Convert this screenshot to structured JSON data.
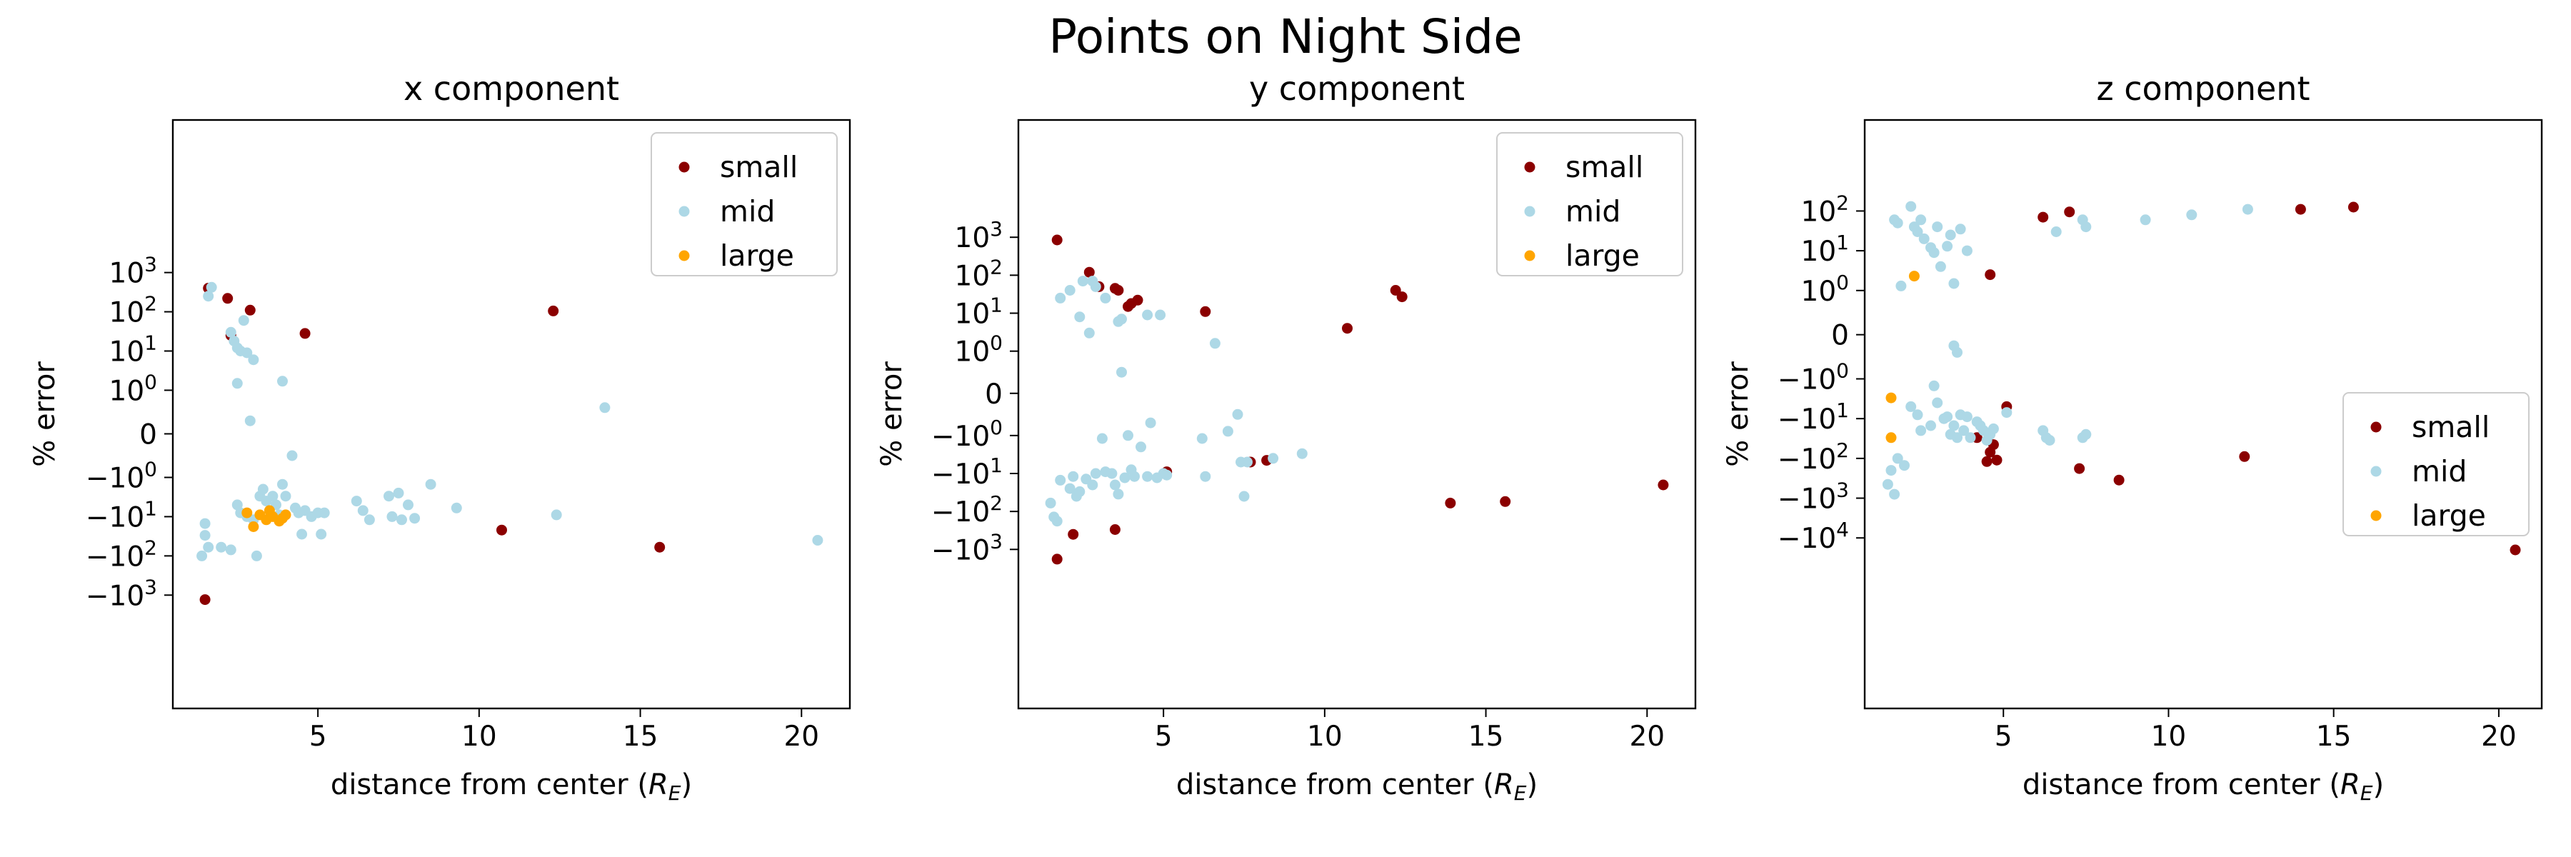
{
  "figure": {
    "suptitle": "Points on Night Side"
  },
  "colors": {
    "small": "#8b0000",
    "mid": "#add8e6",
    "large": "#ffa500"
  },
  "chart_data": [
    {
      "type": "scatter",
      "title": "x component",
      "xlabel": "distance from center",
      "xlabel_math": "R",
      "xlabel_math_sub": "E",
      "ylabel": "% error",
      "xscale": "linear",
      "yscale": "symlog",
      "xlim": [
        0.5,
        21.5
      ],
      "xticks": [
        5,
        10,
        15,
        20
      ],
      "yticks": [
        "10^3",
        "10^2",
        "10^1",
        "10^0",
        "0",
        "-10^0",
        "-10^1",
        "-10^2",
        "-10^3"
      ],
      "ylim_pos": 8,
      "ylim_neg": -7,
      "legend": {
        "placement": "top-right",
        "entries": [
          "small",
          "mid",
          "large"
        ]
      },
      "series": [
        {
          "name": "small",
          "color": "#8b0000",
          "points": [
            [
              1.6,
              400
            ],
            [
              2.2,
              220
            ],
            [
              2.3,
              25
            ],
            [
              2.9,
              110
            ],
            [
              4.6,
              28
            ],
            [
              12.3,
              105
            ],
            [
              10.7,
              -22
            ],
            [
              15.6,
              -60
            ],
            [
              1.5,
              -1300
            ]
          ]
        },
        {
          "name": "mid",
          "color": "#add8e6",
          "points": [
            [
              1.7,
              420
            ],
            [
              1.6,
              250
            ],
            [
              2.3,
              30
            ],
            [
              2.4,
              18
            ],
            [
              2.5,
              12
            ],
            [
              2.6,
              10
            ],
            [
              2.8,
              9
            ],
            [
              2.7,
              60
            ],
            [
              3.0,
              6
            ],
            [
              2.5,
              1.5
            ],
            [
              3.9,
              1.7
            ],
            [
              2.9,
              0.3
            ],
            [
              13.9,
              0.6
            ],
            [
              1.5,
              -15
            ],
            [
              1.6,
              -60
            ],
            [
              1.4,
              -100
            ],
            [
              1.5,
              -30
            ],
            [
              2.0,
              -60
            ],
            [
              2.3,
              -70
            ],
            [
              2.5,
              -5
            ],
            [
              2.6,
              -8
            ],
            [
              2.8,
              -10
            ],
            [
              3.0,
              -12
            ],
            [
              3.1,
              -100
            ],
            [
              3.2,
              -3
            ],
            [
              3.3,
              -2
            ],
            [
              3.4,
              -4
            ],
            [
              3.6,
              -3
            ],
            [
              3.7,
              -5
            ],
            [
              3.8,
              -9
            ],
            [
              3.9,
              -1.5
            ],
            [
              4.0,
              -3
            ],
            [
              4.2,
              -0.5
            ],
            [
              4.3,
              -6
            ],
            [
              4.4,
              -8
            ],
            [
              4.5,
              -28
            ],
            [
              4.6,
              -7
            ],
            [
              4.8,
              -10
            ],
            [
              5.0,
              -8
            ],
            [
              5.1,
              -28
            ],
            [
              5.2,
              -8
            ],
            [
              6.2,
              -4
            ],
            [
              6.4,
              -7
            ],
            [
              6.6,
              -12
            ],
            [
              7.2,
              -3
            ],
            [
              7.3,
              -10
            ],
            [
              7.5,
              -2.5
            ],
            [
              7.6,
              -12
            ],
            [
              7.8,
              -5
            ],
            [
              8.0,
              -11
            ],
            [
              8.5,
              -1.5
            ],
            [
              9.3,
              -6
            ],
            [
              12.4,
              -9
            ],
            [
              20.5,
              -40
            ]
          ]
        },
        {
          "name": "large",
          "color": "#ffa500",
          "points": [
            [
              2.8,
              -8
            ],
            [
              3.0,
              -18
            ],
            [
              3.2,
              -9
            ],
            [
              3.4,
              -12
            ],
            [
              3.5,
              -7
            ],
            [
              3.6,
              -10
            ],
            [
              3.8,
              -13
            ],
            [
              3.9,
              -11
            ],
            [
              4.0,
              -9
            ]
          ]
        }
      ]
    },
    {
      "type": "scatter",
      "title": "y component",
      "xlabel": "distance from center",
      "xlabel_math": "R",
      "xlabel_math_sub": "E",
      "ylabel": "% error",
      "xscale": "linear",
      "yscale": "symlog",
      "xlim": [
        0.5,
        21.5
      ],
      "xticks": [
        5,
        10,
        15,
        20
      ],
      "yticks": [
        "10^3",
        "10^2",
        "10^1",
        "10^0",
        "0",
        "-10^0",
        "-10^1",
        "-10^2",
        "-10^3"
      ],
      "ylim_pos": 7.2,
      "ylim_neg": -8.3,
      "legend": {
        "placement": "top-right",
        "entries": [
          "small",
          "mid",
          "large"
        ]
      },
      "series": [
        {
          "name": "small",
          "color": "#8b0000",
          "points": [
            [
              1.7,
              850
            ],
            [
              2.7,
              120
            ],
            [
              3.0,
              50
            ],
            [
              3.5,
              45
            ],
            [
              3.6,
              40
            ],
            [
              3.9,
              15
            ],
            [
              4.0,
              18
            ],
            [
              4.2,
              22
            ],
            [
              6.3,
              11
            ],
            [
              10.7,
              4
            ],
            [
              12.2,
              40
            ],
            [
              12.4,
              27
            ],
            [
              5.1,
              -9
            ],
            [
              7.7,
              -5
            ],
            [
              8.2,
              -4.5
            ],
            [
              13.9,
              -60
            ],
            [
              15.6,
              -55
            ],
            [
              20.5,
              -20
            ],
            [
              2.2,
              -400
            ],
            [
              3.5,
              -300
            ],
            [
              1.7,
              -1800
            ]
          ]
        },
        {
          "name": "mid",
          "color": "#add8e6",
          "points": [
            [
              1.8,
              25
            ],
            [
              2.1,
              40
            ],
            [
              2.4,
              8
            ],
            [
              2.5,
              70
            ],
            [
              2.7,
              3
            ],
            [
              2.8,
              70
            ],
            [
              2.9,
              50
            ],
            [
              3.2,
              25
            ],
            [
              3.6,
              6
            ],
            [
              3.7,
              7
            ],
            [
              3.7,
              0.5
            ],
            [
              4.5,
              9
            ],
            [
              4.9,
              9
            ],
            [
              6.6,
              1.6
            ],
            [
              1.5,
              -60
            ],
            [
              1.6,
              -140
            ],
            [
              1.7,
              -180
            ],
            [
              1.8,
              -15
            ],
            [
              2.1,
              -25
            ],
            [
              2.2,
              -12
            ],
            [
              2.3,
              -40
            ],
            [
              2.4,
              -30
            ],
            [
              2.6,
              -14
            ],
            [
              2.8,
              -20
            ],
            [
              2.9,
              -10
            ],
            [
              3.1,
              -1.2
            ],
            [
              3.2,
              -9
            ],
            [
              3.4,
              -10
            ],
            [
              3.5,
              -20
            ],
            [
              3.6,
              -35
            ],
            [
              3.8,
              -13
            ],
            [
              3.9,
              -1
            ],
            [
              4.0,
              -8
            ],
            [
              4.1,
              -12
            ],
            [
              4.3,
              -2
            ],
            [
              4.5,
              -12
            ],
            [
              4.6,
              -0.7
            ],
            [
              4.8,
              -13
            ],
            [
              5.0,
              -10
            ],
            [
              5.1,
              -11
            ],
            [
              6.2,
              -1.2
            ],
            [
              6.3,
              -12
            ],
            [
              7.0,
              -0.9
            ],
            [
              7.3,
              -0.5
            ],
            [
              7.4,
              -5
            ],
            [
              7.5,
              -40
            ],
            [
              7.6,
              -5
            ],
            [
              8.4,
              -4
            ],
            [
              9.3,
              -3
            ]
          ]
        },
        {
          "name": "large",
          "color": "#ffa500",
          "points": []
        }
      ]
    },
    {
      "type": "scatter",
      "title": "z component",
      "xlabel": "distance from center",
      "xlabel_math": "R",
      "xlabel_math_sub": "E",
      "ylabel": "% error",
      "xscale": "linear",
      "yscale": "symlog",
      "xlim": [
        0.8,
        21.3
      ],
      "xticks": [
        5,
        10,
        15,
        20
      ],
      "yticks": [
        "10^2",
        "10^1",
        "10^0",
        "0",
        "-10^0",
        "-10^1",
        "-10^2",
        "-10^3",
        "-10^4"
      ],
      "ylim_pos": 5.4,
      "ylim_neg": -9.4,
      "legend": {
        "placement": "center-right",
        "entries": [
          "small",
          "mid",
          "large"
        ]
      },
      "series": [
        {
          "name": "small",
          "color": "#8b0000",
          "points": [
            [
              6.2,
              70
            ],
            [
              7.0,
              95
            ],
            [
              14.0,
              110
            ],
            [
              15.6,
              125
            ],
            [
              4.6,
              2.5
            ],
            [
              5.1,
              -5
            ],
            [
              4.2,
              -30
            ],
            [
              4.6,
              -70
            ],
            [
              4.5,
              -120
            ],
            [
              4.8,
              -110
            ],
            [
              4.7,
              -45
            ],
            [
              7.3,
              -180
            ],
            [
              8.5,
              -350
            ],
            [
              12.3,
              -90
            ],
            [
              20.5,
              -20000
            ]
          ]
        },
        {
          "name": "mid",
          "color": "#add8e6",
          "points": [
            [
              1.7,
              60
            ],
            [
              1.8,
              50
            ],
            [
              2.2,
              130
            ],
            [
              2.3,
              40
            ],
            [
              2.4,
              30
            ],
            [
              2.5,
              60
            ],
            [
              2.6,
              20
            ],
            [
              2.8,
              12
            ],
            [
              2.9,
              9
            ],
            [
              3.0,
              40
            ],
            [
              3.1,
              4
            ],
            [
              3.3,
              13
            ],
            [
              3.4,
              25
            ],
            [
              3.5,
              1.5
            ],
            [
              3.7,
              35
            ],
            [
              3.9,
              10
            ],
            [
              6.6,
              30
            ],
            [
              7.4,
              60
            ],
            [
              7.5,
              40
            ],
            [
              9.3,
              60
            ],
            [
              10.7,
              80
            ],
            [
              12.4,
              110
            ],
            [
              1.9,
              1.3
            ],
            [
              3.5,
              -0.25
            ],
            [
              3.6,
              -0.4
            ],
            [
              1.5,
              -450
            ],
            [
              1.6,
              -200
            ],
            [
              1.7,
              -800
            ],
            [
              1.8,
              -100
            ],
            [
              2.0,
              -150
            ],
            [
              2.2,
              -5
            ],
            [
              2.4,
              -8
            ],
            [
              2.5,
              -20
            ],
            [
              2.8,
              -15
            ],
            [
              2.9,
              -1.5
            ],
            [
              3.0,
              -4
            ],
            [
              3.2,
              -10
            ],
            [
              3.3,
              -9
            ],
            [
              3.4,
              -25
            ],
            [
              3.5,
              -15
            ],
            [
              3.6,
              -30
            ],
            [
              3.7,
              -8
            ],
            [
              3.8,
              -20
            ],
            [
              3.9,
              -9
            ],
            [
              4.0,
              -30
            ],
            [
              4.2,
              -12
            ],
            [
              4.3,
              -15
            ],
            [
              4.4,
              -20
            ],
            [
              4.5,
              -35
            ],
            [
              4.6,
              -25
            ],
            [
              4.7,
              -18
            ],
            [
              5.1,
              -7
            ],
            [
              6.2,
              -20
            ],
            [
              6.3,
              -30
            ],
            [
              6.4,
              -35
            ],
            [
              7.4,
              -30
            ],
            [
              7.5,
              -25
            ]
          ]
        },
        {
          "name": "large",
          "color": "#ffa500",
          "points": [
            [
              2.3,
              2.3
            ],
            [
              1.6,
              -3
            ],
            [
              1.6,
              -30
            ]
          ]
        }
      ]
    }
  ]
}
